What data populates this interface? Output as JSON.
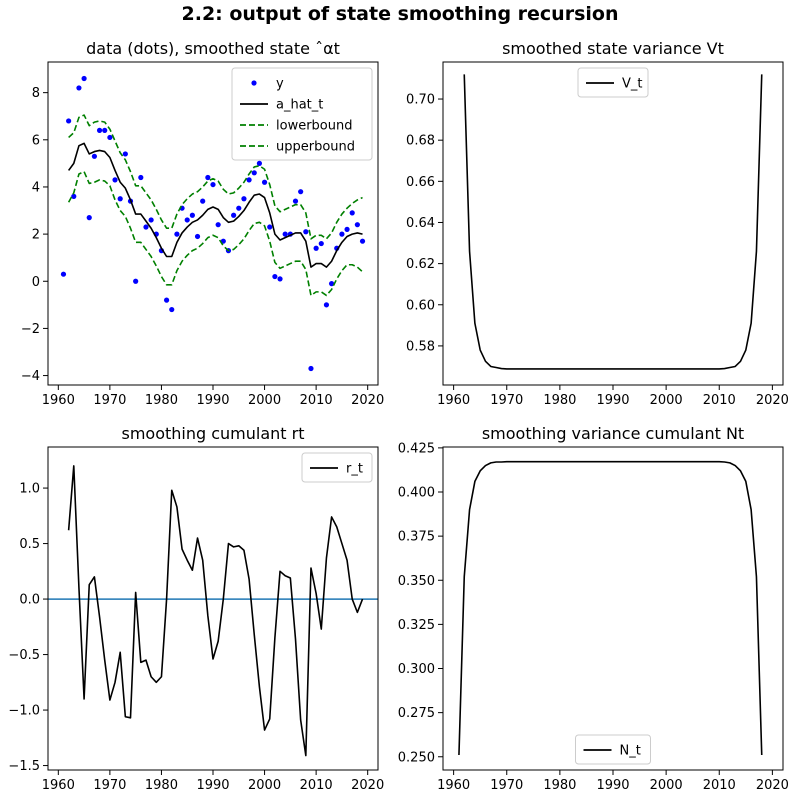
{
  "figure": {
    "title": "2.2: output of state smoothing recursion"
  },
  "chart_data": [
    {
      "id": "p1",
      "type": "line",
      "title": "data (dots), smoothed state ˆαt",
      "xlim": [
        1958,
        2022
      ],
      "ylim": [
        -4.4,
        9.3
      ],
      "xticks": [
        1960,
        1970,
        1980,
        1990,
        2000,
        2010,
        2020
      ],
      "yticks": [
        -4,
        -2,
        0,
        2,
        4,
        6,
        8
      ],
      "yticklabels": [
        "−4",
        "−2",
        "0",
        "2",
        "4",
        "6",
        "8"
      ],
      "legend": {
        "placement": "top-right"
      },
      "x": [
        1961,
        1962,
        1963,
        1964,
        1965,
        1966,
        1967,
        1968,
        1969,
        1970,
        1971,
        1972,
        1973,
        1974,
        1975,
        1976,
        1977,
        1978,
        1979,
        1980,
        1981,
        1982,
        1983,
        1984,
        1985,
        1986,
        1987,
        1988,
        1989,
        1990,
        1991,
        1992,
        1993,
        1994,
        1995,
        1996,
        1997,
        1998,
        1999,
        2000,
        2001,
        2002,
        2003,
        2004,
        2005,
        2006,
        2007,
        2008,
        2009,
        2010,
        2011,
        2012,
        2013,
        2014,
        2015,
        2016,
        2017,
        2018,
        2019
      ],
      "series": [
        {
          "name": "y",
          "kind": "scatter",
          "color": "#0000ff",
          "values": [
            0.3,
            6.8,
            3.6,
            8.2,
            8.6,
            2.7,
            5.3,
            6.4,
            6.4,
            6.1,
            4.3,
            3.5,
            5.4,
            3.4,
            0.0,
            4.4,
            2.3,
            2.6,
            2.0,
            1.3,
            -0.8,
            -1.2,
            2.0,
            3.1,
            2.6,
            2.8,
            1.9,
            3.4,
            4.4,
            4.1,
            2.4,
            1.7,
            1.3,
            2.8,
            3.1,
            3.5,
            4.3,
            4.6,
            5.0,
            4.2,
            2.3,
            0.2,
            0.1,
            2.0,
            2.0,
            3.4,
            3.8,
            2.1,
            -3.7,
            1.4,
            1.6,
            -1.0,
            -0.1,
            1.4,
            2.0,
            2.2,
            2.9,
            2.4,
            1.7
          ]
        },
        {
          "name": "a_hat_t",
          "kind": "line",
          "color": "#000000",
          "dash": "",
          "values": [
            null,
            4.7,
            5.0,
            5.75,
            5.85,
            5.4,
            5.5,
            5.55,
            5.5,
            5.25,
            4.7,
            4.2,
            3.95,
            3.45,
            2.85,
            2.85,
            2.55,
            2.25,
            1.85,
            1.4,
            1.05,
            1.05,
            1.65,
            2.05,
            2.3,
            2.5,
            2.6,
            2.8,
            3.05,
            3.15,
            3.05,
            2.7,
            2.5,
            2.55,
            2.75,
            3.0,
            3.35,
            3.65,
            3.7,
            3.55,
            2.9,
            2.0,
            1.75,
            1.85,
            1.95,
            2.05,
            2.05,
            1.7,
            0.6,
            0.75,
            0.75,
            0.6,
            0.85,
            1.3,
            1.65,
            1.9,
            2.0,
            2.05,
            2.0
          ]
        },
        {
          "name": "lowerbound",
          "kind": "line",
          "color": "#008000",
          "dash": "6,3",
          "values": [
            null,
            3.35,
            3.75,
            4.55,
            4.65,
            4.15,
            4.2,
            4.3,
            4.25,
            4.05,
            3.45,
            3.0,
            2.75,
            2.25,
            1.65,
            1.65,
            1.35,
            1.05,
            0.65,
            0.2,
            -0.15,
            -0.15,
            0.45,
            0.85,
            1.1,
            1.3,
            1.4,
            1.6,
            1.85,
            1.95,
            1.85,
            1.5,
            1.3,
            1.35,
            1.55,
            1.8,
            2.15,
            2.45,
            2.5,
            2.35,
            1.7,
            0.8,
            0.55,
            0.65,
            0.75,
            0.85,
            0.85,
            0.5,
            -0.6,
            -0.45,
            -0.45,
            -0.6,
            -0.35,
            0.1,
            0.45,
            0.7,
            0.7,
            0.6,
            0.4
          ]
        },
        {
          "name": "upperbound",
          "kind": "line",
          "color": "#008000",
          "dash": "6,3",
          "values": [
            null,
            6.1,
            6.3,
            6.95,
            7.05,
            6.6,
            6.75,
            6.8,
            6.75,
            6.45,
            5.95,
            5.45,
            5.15,
            4.65,
            4.05,
            4.05,
            3.75,
            3.45,
            3.05,
            2.6,
            2.25,
            2.25,
            2.85,
            3.25,
            3.5,
            3.7,
            3.8,
            4.0,
            4.25,
            4.35,
            4.25,
            3.9,
            3.7,
            3.75,
            3.95,
            4.2,
            4.55,
            4.85,
            4.9,
            4.75,
            4.1,
            3.2,
            2.95,
            3.05,
            3.15,
            3.25,
            3.25,
            2.9,
            1.8,
            1.95,
            1.95,
            1.8,
            2.05,
            2.5,
            2.85,
            3.1,
            3.3,
            3.45,
            3.55
          ]
        }
      ]
    },
    {
      "id": "p2",
      "type": "line",
      "title": "smoothed state variance Vt",
      "xlim": [
        1958,
        2022
      ],
      "ylim": [
        0.561,
        0.718
      ],
      "xticks": [
        1960,
        1970,
        1980,
        1990,
        2000,
        2010,
        2020
      ],
      "yticks": [
        0.58,
        0.6,
        0.62,
        0.64,
        0.66,
        0.68,
        0.7
      ],
      "yticklabels": [
        "0.58",
        "0.60",
        "0.62",
        "0.64",
        "0.66",
        "0.68",
        "0.70"
      ],
      "legend": {
        "placement": "top-center"
      },
      "x": [
        1962,
        1963,
        1964,
        1965,
        1966,
        1967,
        1968,
        1969,
        1970,
        1980,
        1990,
        2000,
        2010,
        2011,
        2012,
        2013,
        2014,
        2015,
        2016,
        2017,
        2018
      ],
      "series": [
        {
          "name": "V_t",
          "kind": "line",
          "color": "#000000",
          "dash": "",
          "values": [
            0.712,
            0.626,
            0.591,
            0.578,
            0.5725,
            0.57,
            0.5695,
            0.569,
            0.5688,
            0.5688,
            0.5688,
            0.5688,
            0.5688,
            0.569,
            0.5695,
            0.57,
            0.5725,
            0.578,
            0.591,
            0.626,
            0.712
          ]
        }
      ]
    },
    {
      "id": "p3",
      "type": "line",
      "title": "smoothing cumulant rt",
      "xlim": [
        1958,
        2022
      ],
      "ylim": [
        -1.54,
        1.37
      ],
      "xticks": [
        1960,
        1970,
        1980,
        1990,
        2000,
        2010,
        2020
      ],
      "yticks": [
        -1.5,
        -1.0,
        -0.5,
        0.0,
        0.5,
        1.0
      ],
      "yticklabels": [
        "−1.5",
        "−1.0",
        "−0.5",
        "0.0",
        "0.5",
        "1.0"
      ],
      "legend": {
        "placement": "top-right"
      },
      "hline": {
        "y": 0.0,
        "color": "#1f77b4"
      },
      "x": [
        1962,
        1963,
        1964,
        1965,
        1966,
        1967,
        1968,
        1969,
        1970,
        1971,
        1972,
        1973,
        1974,
        1975,
        1976,
        1977,
        1978,
        1979,
        1980,
        1981,
        1982,
        1983,
        1984,
        1985,
        1986,
        1987,
        1988,
        1989,
        1990,
        1991,
        1992,
        1993,
        1994,
        1995,
        1996,
        1997,
        1998,
        1999,
        2000,
        2001,
        2002,
        2003,
        2004,
        2005,
        2006,
        2007,
        2008,
        2009,
        2010,
        2011,
        2012,
        2013,
        2014,
        2015,
        2016,
        2017,
        2018,
        2019
      ],
      "series": [
        {
          "name": "r_t",
          "kind": "line",
          "color": "#000000",
          "dash": "",
          "values": [
            0.62,
            1.2,
            0.1,
            -0.9,
            0.13,
            0.2,
            -0.16,
            -0.55,
            -0.91,
            -0.75,
            -0.48,
            -1.06,
            -1.07,
            0.06,
            -0.57,
            -0.55,
            -0.7,
            -0.75,
            -0.7,
            0.0,
            0.98,
            0.83,
            0.45,
            0.35,
            0.26,
            0.55,
            0.35,
            -0.15,
            -0.54,
            -0.38,
            0.0,
            0.5,
            0.47,
            0.48,
            0.44,
            0.18,
            -0.32,
            -0.79,
            -1.18,
            -1.08,
            -0.35,
            0.25,
            0.21,
            0.19,
            -0.36,
            -1.09,
            -1.41,
            0.28,
            0.05,
            -0.27,
            0.37,
            0.74,
            0.65,
            0.5,
            0.35,
            0.0,
            -0.12,
            0.0
          ]
        }
      ]
    },
    {
      "id": "p4",
      "type": "line",
      "title": "smoothing variance cumulant Nt",
      "xlim": [
        1958,
        2022
      ],
      "ylim": [
        0.2425,
        0.4255
      ],
      "xticks": [
        1960,
        1970,
        1980,
        1990,
        2000,
        2010,
        2020
      ],
      "yticks": [
        0.25,
        0.275,
        0.3,
        0.325,
        0.35,
        0.375,
        0.4,
        0.425
      ],
      "yticklabels": [
        "0.250",
        "0.275",
        "0.300",
        "0.325",
        "0.350",
        "0.375",
        "0.400",
        "0.425"
      ],
      "legend": {
        "placement": "bottom-center"
      },
      "x": [
        1961,
        1962,
        1963,
        1964,
        1965,
        1966,
        1967,
        1968,
        1969,
        1970,
        1980,
        1990,
        2000,
        2010,
        2011,
        2012,
        2013,
        2014,
        2015,
        2016,
        2017,
        2018
      ],
      "series": [
        {
          "name": "N_t",
          "kind": "line",
          "color": "#000000",
          "dash": "",
          "values": [
            0.251,
            0.352,
            0.39,
            0.406,
            0.412,
            0.415,
            0.4165,
            0.417,
            0.417,
            0.4172,
            0.4172,
            0.4172,
            0.4172,
            0.4172,
            0.417,
            0.4165,
            0.415,
            0.412,
            0.406,
            0.39,
            0.352,
            0.251
          ]
        }
      ]
    }
  ]
}
